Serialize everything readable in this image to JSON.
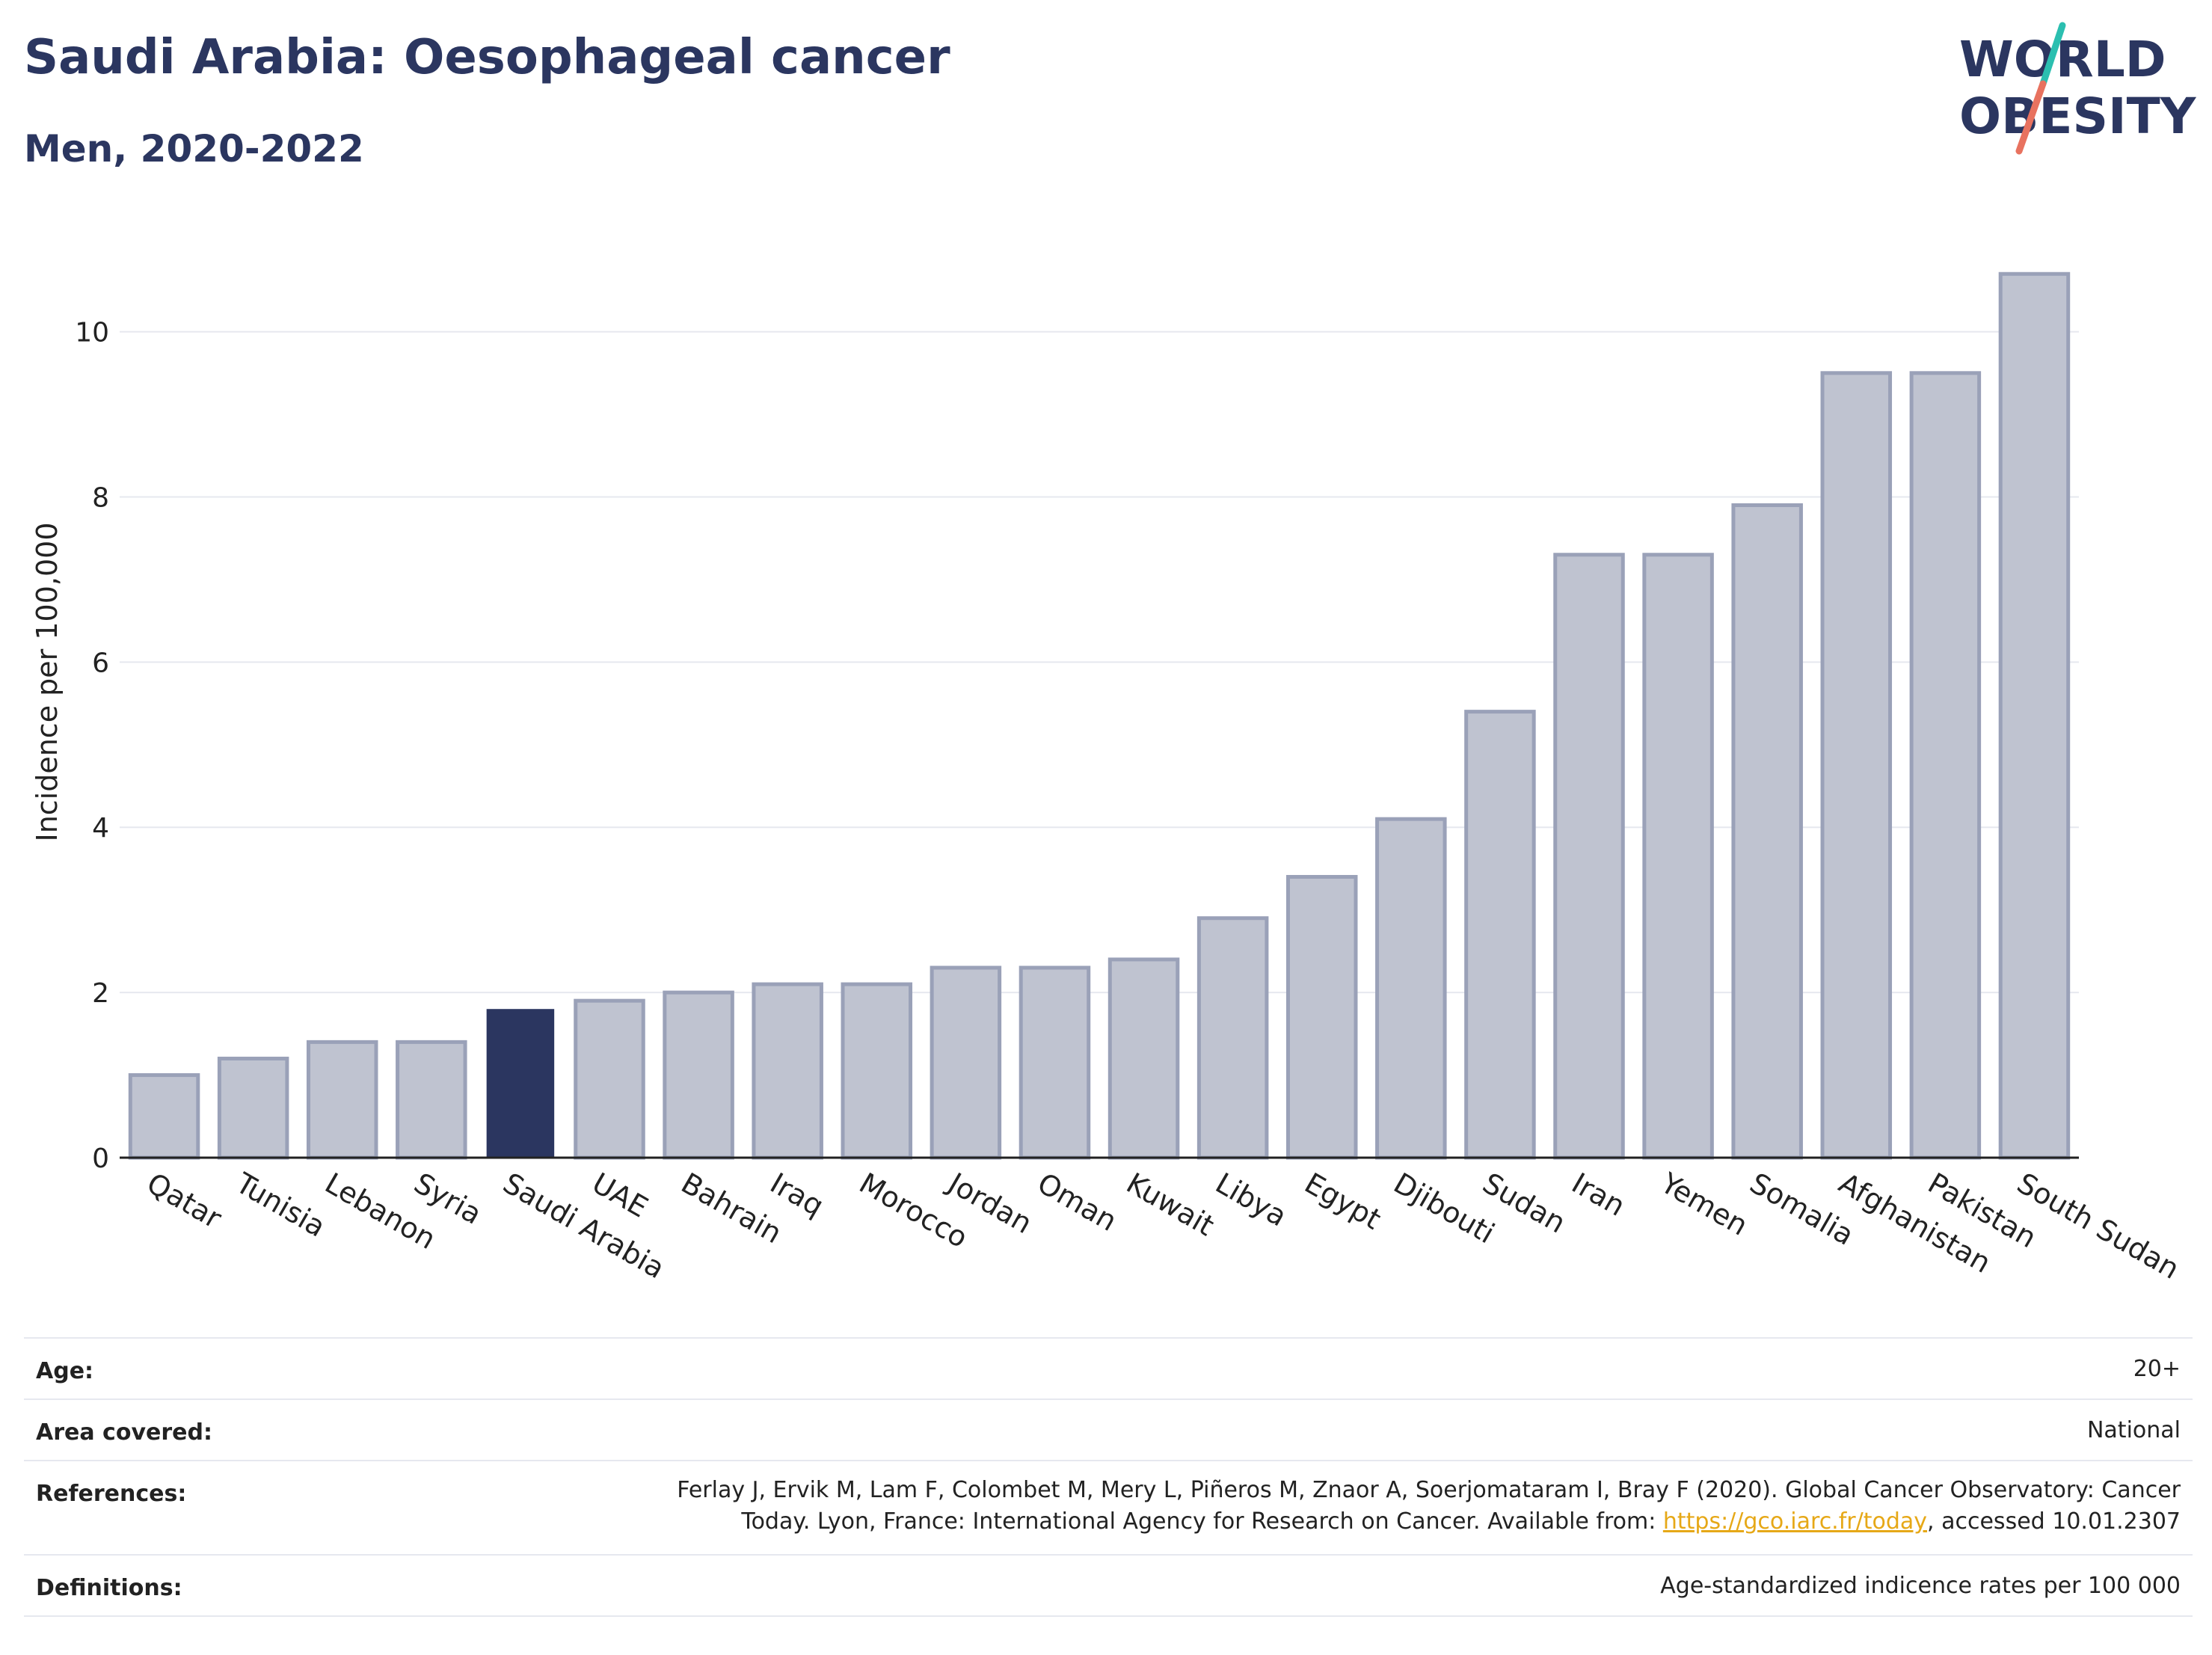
{
  "header": {
    "title": "Saudi Arabia: Oesophageal cancer",
    "subtitle": "Men, 2020-2022"
  },
  "logo": {
    "line1": "WORLD",
    "line2": "OBESITY",
    "colors": {
      "text": "#2b3660",
      "slash_top": "#2bbfb0",
      "slash_bottom": "#e8725f"
    }
  },
  "chart_data": {
    "type": "bar",
    "categories": [
      "Qatar",
      "Tunisia",
      "Lebanon",
      "Syria",
      "Saudi Arabia",
      "UAE",
      "Bahrain",
      "Iraq",
      "Morocco",
      "Jordan",
      "Oman",
      "Kuwait",
      "Libya",
      "Egypt",
      "Djibouti",
      "Sudan",
      "Iran",
      "Yemen",
      "Somalia",
      "Afghanistan",
      "Pakistan",
      "South Sudan"
    ],
    "values": [
      1.0,
      1.2,
      1.4,
      1.4,
      1.8,
      1.9,
      2.0,
      2.1,
      2.1,
      2.3,
      2.3,
      2.4,
      2.9,
      3.4,
      4.1,
      5.4,
      7.3,
      7.3,
      7.9,
      9.5,
      9.5,
      10.7
    ],
    "highlight": "Saudi Arabia",
    "ylabel": "Incidence per 100,000",
    "xlabel": "",
    "ylim": [
      0,
      11.3
    ],
    "yticks": [
      0,
      2,
      4,
      6,
      8,
      10
    ],
    "grid": true,
    "colors": {
      "bar": "#bfc3d0",
      "bar_border": "#9aa1b8",
      "highlight": "#2b3660",
      "grid": "#e6e8ef",
      "axis": "#222222"
    }
  },
  "meta": {
    "age_label": "Age:",
    "age_value": "20+",
    "area_label": "Area covered:",
    "area_value": "National",
    "references_label": "References:",
    "references_line1": "Ferlay J, Ervik M, Lam F, Colombet M, Mery L, Piñeros M, Znaor A, Soerjomataram I, Bray F (2020). Global Cancer Observatory: Cancer",
    "references_line2_pre": "Today. Lyon, France: International Agency for Research on Cancer. Available from: ",
    "references_link": "https://gco.iarc.fr/today",
    "references_line2_post": ", accessed 10.01.2307",
    "definitions_label": "Definitions:",
    "definitions_value": "Age-standardized indicence rates per 100 000"
  }
}
